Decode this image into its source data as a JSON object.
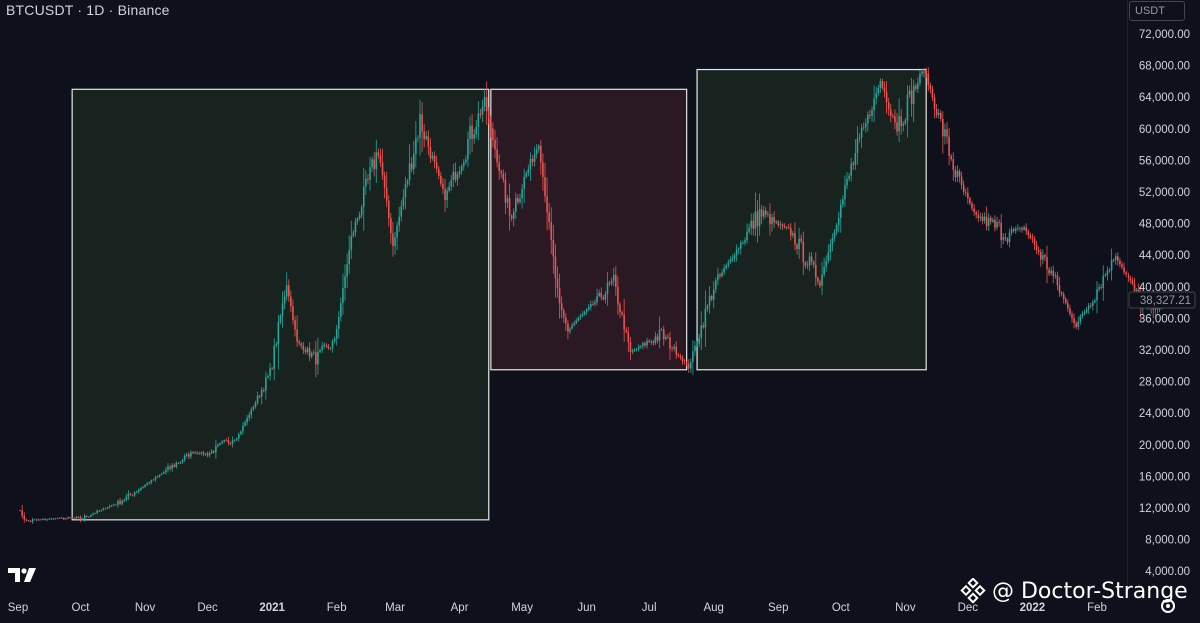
{
  "header": {
    "title": "BTCUSDT · 1D · Binance"
  },
  "currency_badge": "USDT",
  "watermark": {
    "text": "@ Doctor-Strange",
    "icon": "binance-logo-icon"
  },
  "price_tag": {
    "label": "38,327.21",
    "value": 38327.21,
    "color": "#f23645"
  },
  "colors": {
    "up": "#26a69a",
    "down": "#ef5350",
    "background": "#0e111b",
    "axis_text": "#d1d4dc"
  },
  "chart_data": {
    "type": "candlestick",
    "title": "BTCUSDT · 1D · Binance",
    "xlabel": "",
    "ylabel": "",
    "ylim": [
      0,
      74000
    ],
    "y_ticks": [
      4000,
      8000,
      12000,
      16000,
      20000,
      24000,
      28000,
      32000,
      36000,
      40000,
      44000,
      48000,
      52000,
      56000,
      60000,
      64000,
      68000,
      72000
    ],
    "y_tick_labels": [
      "4,000.00",
      "8,000.00",
      "12,000.00",
      "16,000.00",
      "20,000.00",
      "24,000.00",
      "28,000.00",
      "32,000.00",
      "36,000.00",
      "40,000.00",
      "44,000.00",
      "48,000.00",
      "52,000.00",
      "56,000.00",
      "60,000.00",
      "64,000.00",
      "68,000.00",
      "72,000.00"
    ],
    "x_range": [
      "2020-09-01",
      "2022-03-08"
    ],
    "x_ticks": [
      {
        "date": "2020-09-01",
        "label": "Sep",
        "bold": false
      },
      {
        "date": "2020-10-01",
        "label": "Oct",
        "bold": false
      },
      {
        "date": "2020-11-01",
        "label": "Nov",
        "bold": false
      },
      {
        "date": "2020-12-01",
        "label": "Dec",
        "bold": false
      },
      {
        "date": "2021-01-01",
        "label": "2021",
        "bold": true
      },
      {
        "date": "2021-02-01",
        "label": "Feb",
        "bold": false
      },
      {
        "date": "2021-03-01",
        "label": "Mar",
        "bold": false
      },
      {
        "date": "2021-04-01",
        "label": "Apr",
        "bold": false
      },
      {
        "date": "2021-05-01",
        "label": "May",
        "bold": false
      },
      {
        "date": "2021-06-01",
        "label": "Jun",
        "bold": false
      },
      {
        "date": "2021-07-01",
        "label": "Jul",
        "bold": false
      },
      {
        "date": "2021-08-01",
        "label": "Aug",
        "bold": false
      },
      {
        "date": "2021-09-01",
        "label": "Sep",
        "bold": false
      },
      {
        "date": "2021-10-01",
        "label": "Oct",
        "bold": false
      },
      {
        "date": "2021-11-01",
        "label": "Nov",
        "bold": false
      },
      {
        "date": "2021-12-01",
        "label": "Dec",
        "bold": false
      },
      {
        "date": "2022-01-01",
        "label": "2022",
        "bold": true
      },
      {
        "date": "2022-02-01",
        "label": "Feb",
        "bold": false
      }
    ],
    "close_series": [
      [
        "2020-09-01",
        11900
      ],
      [
        "2020-09-05",
        10300
      ],
      [
        "2020-09-20",
        10700
      ],
      [
        "2020-10-01",
        10600
      ],
      [
        "2020-10-20",
        12800
      ],
      [
        "2020-11-05",
        15600
      ],
      [
        "2020-11-24",
        19100
      ],
      [
        "2020-12-01",
        18800
      ],
      [
        "2020-12-16",
        21300
      ],
      [
        "2020-12-31",
        29000
      ],
      [
        "2021-01-08",
        40500
      ],
      [
        "2021-01-13",
        33000
      ],
      [
        "2021-01-22",
        30900
      ],
      [
        "2021-01-31",
        33100
      ],
      [
        "2021-02-08",
        46200
      ],
      [
        "2021-02-21",
        57500
      ],
      [
        "2021-02-28",
        45200
      ],
      [
        "2021-03-13",
        61100
      ],
      [
        "2021-03-25",
        51300
      ],
      [
        "2021-04-13",
        63500
      ],
      [
        "2021-04-25",
        49000
      ],
      [
        "2021-05-09",
        58200
      ],
      [
        "2021-05-19",
        37000
      ],
      [
        "2021-05-23",
        34600
      ],
      [
        "2021-06-14",
        40500
      ],
      [
        "2021-06-22",
        31700
      ],
      [
        "2021-07-07",
        34000
      ],
      [
        "2021-07-20",
        29800
      ],
      [
        "2021-08-01",
        40000
      ],
      [
        "2021-08-23",
        49300
      ],
      [
        "2021-09-07",
        46900
      ],
      [
        "2021-09-21",
        40600
      ],
      [
        "2021-10-06",
        55000
      ],
      [
        "2021-10-20",
        66000
      ],
      [
        "2021-10-28",
        60600
      ],
      [
        "2021-11-10",
        67500
      ],
      [
        "2021-11-26",
        53700
      ],
      [
        "2021-12-04",
        49200
      ],
      [
        "2021-12-20",
        46600
      ],
      [
        "2021-12-28",
        47500
      ],
      [
        "2022-01-10",
        41800
      ],
      [
        "2022-01-22",
        35000
      ],
      [
        "2022-02-10",
        44000
      ],
      [
        "2022-02-24",
        37000
      ],
      [
        "2022-03-08",
        38327.21
      ]
    ],
    "boxes": [
      {
        "name": "rally-box-1",
        "x0": "2020-09-27",
        "x1": "2021-04-15",
        "y0": 10500,
        "y1": 65000,
        "fill": "#18231f"
      },
      {
        "name": "decline-box",
        "x0": "2021-04-16",
        "x1": "2021-07-19",
        "y0": 29500,
        "y1": 65000,
        "fill": "#2a1822"
      },
      {
        "name": "rally-box-2",
        "x0": "2021-07-24",
        "x1": "2021-11-11",
        "y0": 29500,
        "y1": 67500,
        "fill": "#18231f"
      }
    ]
  }
}
